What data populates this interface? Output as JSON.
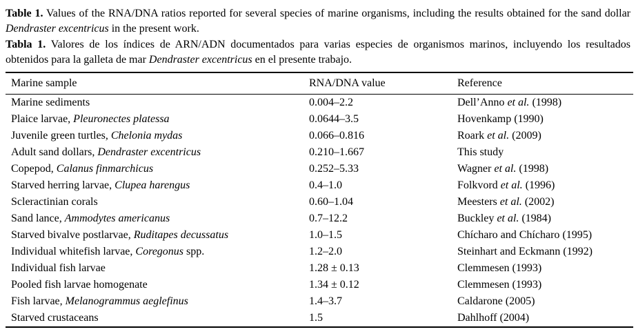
{
  "caption_en": {
    "label": "Table 1.",
    "before_italic": " Values of the RNA/DNA ratios reported for several species of marine organisms, including the results obtained for the sand dollar ",
    "italic": "Dendraster excentricus",
    "after_italic": " in the present work."
  },
  "caption_es": {
    "label": "Tabla 1.",
    "before_italic": " Valores de los índices de ARN/ADN documentados para varias especies de organismos marinos, incluyendo los resultados obtenidos para la galleta de mar ",
    "italic": "Dendraster excentricus",
    "after_italic": " en el presente trabajo."
  },
  "table": {
    "columns": [
      "Marine sample",
      "RNA/DNA value",
      "Reference"
    ],
    "rows": [
      {
        "sample": [
          {
            "t": "Marine sediments"
          }
        ],
        "value": "0.004–2.2",
        "reference": [
          {
            "t": "Dell’Anno "
          },
          {
            "t": "et al.",
            "i": true
          },
          {
            "t": " (1998)"
          }
        ]
      },
      {
        "sample": [
          {
            "t": "Plaice larvae, "
          },
          {
            "t": "Pleuronectes platessa",
            "i": true
          }
        ],
        "value": "0.0644–3.5",
        "reference": [
          {
            "t": "Hovenkamp (1990)"
          }
        ]
      },
      {
        "sample": [
          {
            "t": "Juvenile green turtles, "
          },
          {
            "t": "Chelonia mydas",
            "i": true
          }
        ],
        "value": "0.066–0.816",
        "reference": [
          {
            "t": "Roark "
          },
          {
            "t": "et al.",
            "i": true
          },
          {
            "t": " (2009)"
          }
        ]
      },
      {
        "sample": [
          {
            "t": "Adult sand dollars, "
          },
          {
            "t": "Dendraster excentricus",
            "i": true
          }
        ],
        "value": "0.210–1.667",
        "reference": [
          {
            "t": "This study"
          }
        ]
      },
      {
        "sample": [
          {
            "t": "Copepod, "
          },
          {
            "t": "Calanus finmarchicus",
            "i": true
          }
        ],
        "value": "0.252–5.33",
        "reference": [
          {
            "t": "Wagner "
          },
          {
            "t": "et al.",
            "i": true
          },
          {
            "t": " (1998)"
          }
        ]
      },
      {
        "sample": [
          {
            "t": "Starved herring larvae, "
          },
          {
            "t": "Clupea harengus",
            "i": true
          }
        ],
        "value": "0.4–1.0",
        "reference": [
          {
            "t": "Folkvord "
          },
          {
            "t": "et al.",
            "i": true
          },
          {
            "t": " (1996)"
          }
        ]
      },
      {
        "sample": [
          {
            "t": "Scleractinian corals"
          }
        ],
        "value": "0.60–1.04",
        "reference": [
          {
            "t": "Meesters "
          },
          {
            "t": "et al.",
            "i": true
          },
          {
            "t": " (2002)"
          }
        ]
      },
      {
        "sample": [
          {
            "t": "Sand lance, "
          },
          {
            "t": "Ammodytes americanus",
            "i": true
          }
        ],
        "value": "0.7–12.2",
        "reference": [
          {
            "t": "Buckley "
          },
          {
            "t": "et al.",
            "i": true
          },
          {
            "t": " (1984)"
          }
        ]
      },
      {
        "sample": [
          {
            "t": "Starved bivalve postlarvae, "
          },
          {
            "t": "Ruditapes decussatus",
            "i": true
          }
        ],
        "value": "1.0–1.5",
        "reference": [
          {
            "t": "Chícharo and Chícharo (1995)"
          }
        ]
      },
      {
        "sample": [
          {
            "t": "Individual whitefish larvae, "
          },
          {
            "t": "Coregonus",
            "i": true
          },
          {
            "t": " spp."
          }
        ],
        "value": "1.2–2.0",
        "reference": [
          {
            "t": "Steinhart and Eckmann (1992)"
          }
        ]
      },
      {
        "sample": [
          {
            "t": "Individual fish larvae"
          }
        ],
        "value": "1.28 ± 0.13",
        "reference": [
          {
            "t": "Clemmesen (1993)"
          }
        ]
      },
      {
        "sample": [
          {
            "t": "Pooled fish larvae homogenate"
          }
        ],
        "value": "1.34 ± 0.12",
        "reference": [
          {
            "t": "Clemmesen (1993)"
          }
        ]
      },
      {
        "sample": [
          {
            "t": "Fish larvae, "
          },
          {
            "t": "Melanogrammus aeglefinus",
            "i": true
          }
        ],
        "value": "1.4–3.7",
        "reference": [
          {
            "t": "Caldarone (2005)"
          }
        ]
      },
      {
        "sample": [
          {
            "t": "Starved crustaceans"
          }
        ],
        "value": "1.5",
        "reference": [
          {
            "t": "Dahlhoff (2004)"
          }
        ]
      }
    ]
  }
}
